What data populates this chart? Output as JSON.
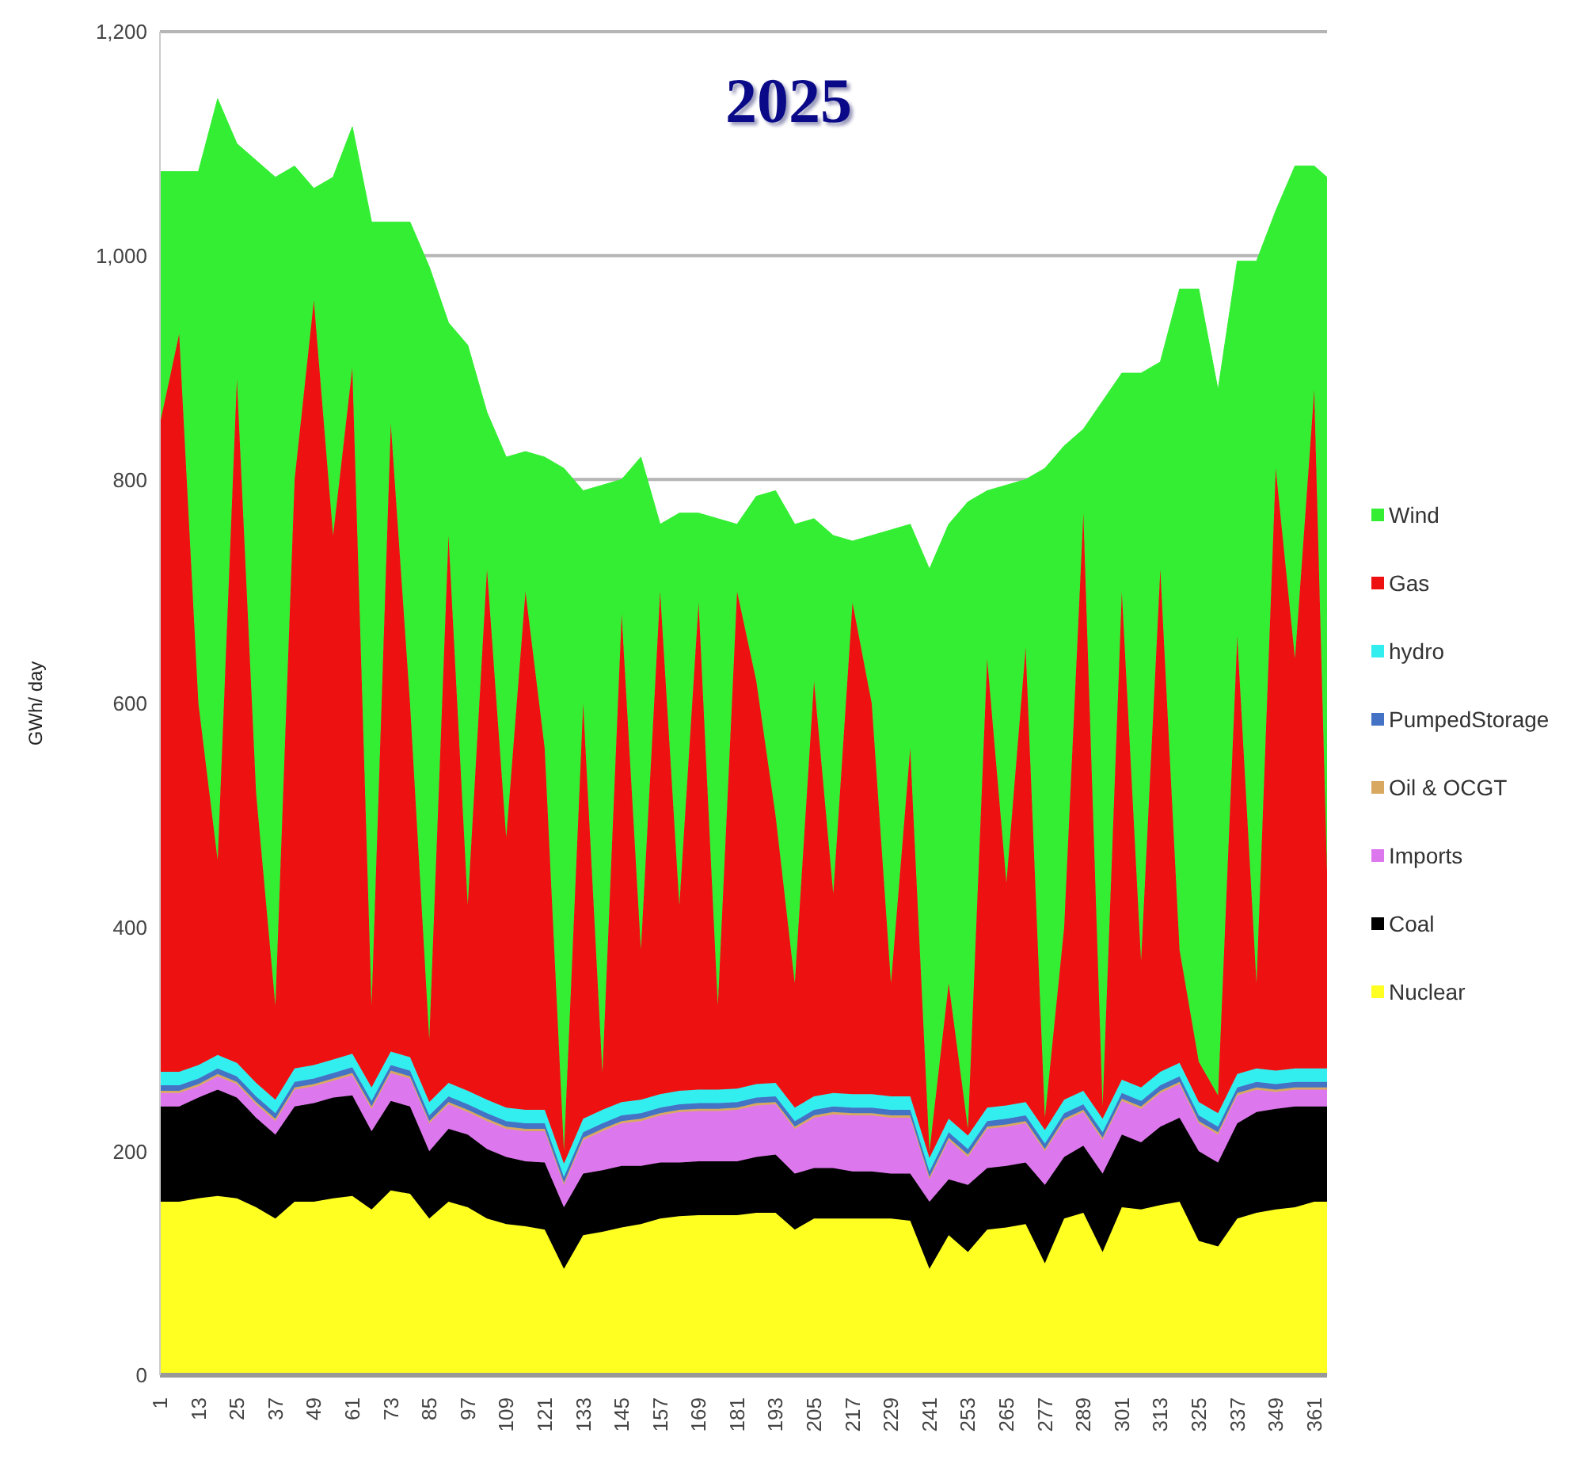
{
  "chart_data": {
    "type": "area",
    "title": "2025",
    "ylabel": "GWh/ day",
    "stacked": true,
    "grid": "y",
    "legend": "right",
    "x": [
      1,
      7,
      13,
      19,
      25,
      31,
      37,
      43,
      49,
      55,
      61,
      67,
      73,
      79,
      85,
      91,
      97,
      103,
      109,
      115,
      121,
      127,
      133,
      139,
      145,
      151,
      157,
      163,
      169,
      175,
      181,
      187,
      193,
      199,
      205,
      211,
      217,
      223,
      229,
      235,
      241,
      247,
      253,
      259,
      265,
      271,
      277,
      283,
      289,
      295,
      301,
      307,
      313,
      319,
      325,
      331,
      337,
      343,
      349,
      355,
      361,
      365
    ],
    "xlim": [
      1,
      365
    ],
    "xticks": [
      1,
      13,
      25,
      37,
      49,
      61,
      73,
      85,
      97,
      109,
      121,
      133,
      145,
      157,
      169,
      181,
      193,
      205,
      217,
      229,
      241,
      253,
      265,
      277,
      289,
      301,
      313,
      325,
      337,
      349,
      361
    ],
    "ylim": [
      0,
      1200
    ],
    "yticks": [
      0,
      200,
      400,
      600,
      800,
      {
        "value": 1000,
        "label": "1,000"
      },
      {
        "value": 1200,
        "label": "1,200"
      }
    ],
    "series": [
      {
        "name": "Nuclear",
        "color": "#ffff22",
        "values": [
          155,
          155,
          158,
          160,
          158,
          150,
          140,
          155,
          155,
          158,
          160,
          148,
          165,
          162,
          140,
          155,
          150,
          140,
          135,
          133,
          130,
          95,
          125,
          128,
          132,
          135,
          140,
          142,
          143,
          143,
          143,
          145,
          145,
          130,
          140,
          140,
          140,
          140,
          140,
          138,
          95,
          125,
          110,
          130,
          132,
          135,
          100,
          140,
          145,
          110,
          150,
          148,
          152,
          155,
          120,
          115,
          140,
          145,
          148,
          150,
          155,
          155
        ]
      },
      {
        "name": "Coal",
        "color": "#000000",
        "values": [
          85,
          85,
          90,
          95,
          90,
          80,
          75,
          85,
          88,
          90,
          90,
          70,
          80,
          78,
          60,
          65,
          65,
          62,
          60,
          58,
          60,
          55,
          55,
          55,
          55,
          52,
          50,
          48,
          48,
          48,
          48,
          50,
          52,
          50,
          45,
          45,
          42,
          42,
          40,
          42,
          60,
          50,
          60,
          55,
          55,
          55,
          70,
          55,
          60,
          70,
          65,
          60,
          70,
          75,
          80,
          75,
          85,
          90,
          90,
          90,
          85,
          85
        ]
      },
      {
        "name": "Imports",
        "color": "#dd77ee",
        "values": [
          12,
          12,
          10,
          12,
          12,
          12,
          12,
          15,
          15,
          15,
          18,
          20,
          25,
          25,
          25,
          22,
          20,
          25,
          25,
          27,
          28,
          20,
          30,
          35,
          38,
          40,
          42,
          45,
          45,
          45,
          46,
          46,
          45,
          40,
          45,
          48,
          50,
          50,
          50,
          50,
          20,
          35,
          25,
          35,
          35,
          35,
          30,
          32,
          30,
          30,
          30,
          30,
          30,
          30,
          25,
          25,
          25,
          20,
          15,
          15,
          15,
          15
        ]
      },
      {
        "name": "Oil & OCGT",
        "color": "#d8a860",
        "values": [
          2,
          2,
          2,
          2,
          2,
          2,
          2,
          2,
          2,
          2,
          2,
          2,
          2,
          2,
          2,
          2,
          2,
          2,
          2,
          2,
          2,
          2,
          2,
          2,
          2,
          2,
          2,
          2,
          2,
          2,
          2,
          2,
          2,
          2,
          2,
          2,
          2,
          2,
          2,
          2,
          2,
          2,
          2,
          2,
          2,
          2,
          2,
          2,
          2,
          2,
          2,
          2,
          2,
          2,
          2,
          2,
          2,
          2,
          2,
          2,
          2,
          2
        ]
      },
      {
        "name": "PumpedStorage",
        "color": "#4472c4",
        "values": [
          5,
          5,
          5,
          5,
          5,
          5,
          5,
          5,
          5,
          5,
          5,
          5,
          5,
          5,
          5,
          5,
          5,
          5,
          5,
          5,
          5,
          5,
          5,
          5,
          5,
          5,
          5,
          5,
          5,
          5,
          5,
          5,
          5,
          5,
          5,
          5,
          5,
          5,
          5,
          5,
          5,
          5,
          5,
          5,
          5,
          5,
          5,
          5,
          5,
          5,
          5,
          5,
          5,
          5,
          5,
          5,
          5,
          5,
          5,
          5,
          5,
          5
        ]
      },
      {
        "name": "hydro",
        "color": "#33eeee",
        "values": [
          12,
          12,
          12,
          12,
          12,
          12,
          12,
          12,
          12,
          12,
          12,
          12,
          12,
          12,
          12,
          12,
          12,
          12,
          12,
          12,
          12,
          12,
          12,
          12,
          12,
          12,
          12,
          12,
          12,
          12,
          12,
          12,
          12,
          12,
          12,
          12,
          12,
          12,
          12,
          12,
          12,
          12,
          12,
          12,
          12,
          12,
          12,
          12,
          12,
          12,
          12,
          12,
          12,
          12,
          12,
          12,
          12,
          12,
          12,
          12,
          12,
          12
        ]
      },
      {
        "name": "Gas",
        "color": "#ee1111",
        "values": [
          579,
          659,
          323,
          174,
          611,
          259,
          84,
          526,
          683,
          468,
          613,
          73,
          561,
          316,
          56,
          489,
          166,
          474,
          241,
          463,
          323,
          11,
          371,
          33,
          436,
          134,
          449,
          166,
          435,
          75,
          444,
          360,
          239,
          111,
          371,
          178,
          439,
          349,
          101,
          311,
          6,
          121,
          6,
          401,
          199,
          406,
          11,
          154,
          516,
          11,
          436,
          113,
          449,
          101,
          36,
          16,
          391,
          76,
          538,
          366,
          606,
          176
        ]
      },
      {
        "name": "Wind",
        "color": "#33ee33",
        "values": [
          225,
          145,
          475,
          680,
          210,
          565,
          740,
          280,
          100,
          320,
          215,
          700,
          180,
          430,
          690,
          190,
          500,
          140,
          340,
          125,
          260,
          610,
          190,
          525,
          120,
          440,
          60,
          350,
          80,
          435,
          60,
          165,
          290,
          410,
          145,
          320,
          55,
          150,
          405,
          200,
          520,
          410,
          560,
          150,
          355,
          150,
          580,
          430,
          75,
          630,
          195,
          525,
          185,
          590,
          690,
          630,
          335,
          645,
          230,
          440,
          200,
          620
        ]
      }
    ]
  }
}
